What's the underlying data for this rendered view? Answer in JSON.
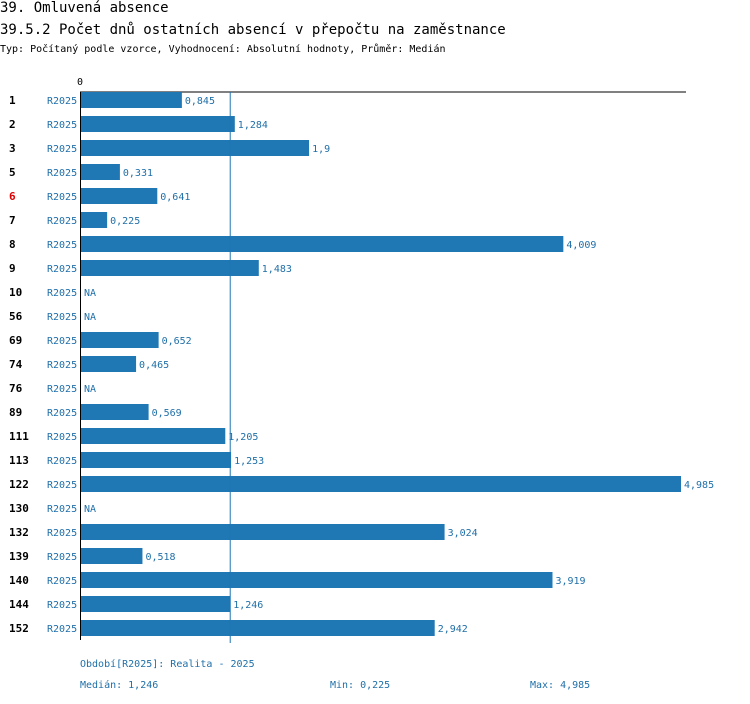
{
  "header": {
    "section": "39. Omluvená absence",
    "title": "39.5.2 Počet dnů ostatních absencí v přepočtu na zaměstnance",
    "subtitle": "Typ: Počítaný podle vzorce, Vyhodnocení: Absolutní hodnoty, Průměr: Medián"
  },
  "colors": {
    "bar": "#1f77b4",
    "label": "#1f6fa8",
    "highlight": "#dd0000",
    "axis": "#000000"
  },
  "chart_data": {
    "type": "bar",
    "orientation": "horizontal",
    "axis_zero_label": "0",
    "xlim": [
      0,
      4.985
    ],
    "median_value": 1.246,
    "na_text": "NA",
    "rows": [
      {
        "id": "1",
        "series": "R2025",
        "value": 0.845,
        "label": "0,845",
        "highlight": false
      },
      {
        "id": "2",
        "series": "R2025",
        "value": 1.284,
        "label": "1,284",
        "highlight": false
      },
      {
        "id": "3",
        "series": "R2025",
        "value": 1.9,
        "label": "1,9",
        "highlight": false
      },
      {
        "id": "5",
        "series": "R2025",
        "value": 0.331,
        "label": "0,331",
        "highlight": false
      },
      {
        "id": "6",
        "series": "R2025",
        "value": 0.641,
        "label": "0,641",
        "highlight": true
      },
      {
        "id": "7",
        "series": "R2025",
        "value": 0.225,
        "label": "0,225",
        "highlight": false
      },
      {
        "id": "8",
        "series": "R2025",
        "value": 4.009,
        "label": "4,009",
        "highlight": false
      },
      {
        "id": "9",
        "series": "R2025",
        "value": 1.483,
        "label": "1,483",
        "highlight": false
      },
      {
        "id": "10",
        "series": "R2025",
        "value": null,
        "label": "NA",
        "highlight": false
      },
      {
        "id": "56",
        "series": "R2025",
        "value": null,
        "label": "NA",
        "highlight": false
      },
      {
        "id": "69",
        "series": "R2025",
        "value": 0.652,
        "label": "0,652",
        "highlight": false
      },
      {
        "id": "74",
        "series": "R2025",
        "value": 0.465,
        "label": "0,465",
        "highlight": false
      },
      {
        "id": "76",
        "series": "R2025",
        "value": null,
        "label": "NA",
        "highlight": false
      },
      {
        "id": "89",
        "series": "R2025",
        "value": 0.569,
        "label": "0,569",
        "highlight": false
      },
      {
        "id": "111",
        "series": "R2025",
        "value": 1.205,
        "label": "1,205",
        "highlight": false
      },
      {
        "id": "113",
        "series": "R2025",
        "value": 1.253,
        "label": "1,253",
        "highlight": false
      },
      {
        "id": "122",
        "series": "R2025",
        "value": 4.985,
        "label": "4,985",
        "highlight": false
      },
      {
        "id": "130",
        "series": "R2025",
        "value": null,
        "label": "NA",
        "highlight": false
      },
      {
        "id": "132",
        "series": "R2025",
        "value": 3.024,
        "label": "3,024",
        "highlight": false
      },
      {
        "id": "139",
        "series": "R2025",
        "value": 0.518,
        "label": "0,518",
        "highlight": false
      },
      {
        "id": "140",
        "series": "R2025",
        "value": 3.919,
        "label": "3,919",
        "highlight": false
      },
      {
        "id": "144",
        "series": "R2025",
        "value": 1.246,
        "label": "1,246",
        "highlight": false
      },
      {
        "id": "152",
        "series": "R2025",
        "value": 2.942,
        "label": "2,942",
        "highlight": false
      }
    ]
  },
  "footer": {
    "period": "Období[R2025]: Realita - 2025",
    "median": "Medián: 1,246",
    "min": "Min: 0,225",
    "max": "Max: 4,985"
  }
}
